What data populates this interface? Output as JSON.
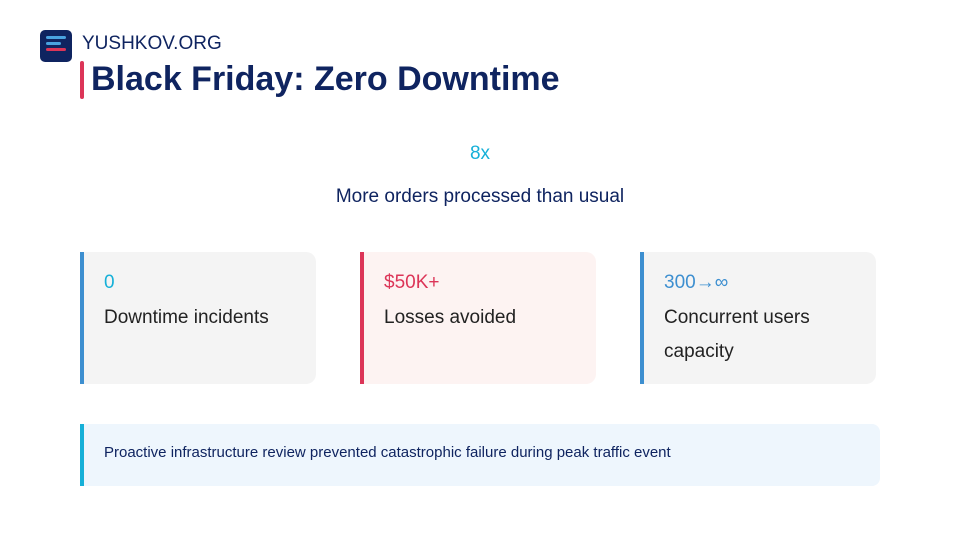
{
  "header": {
    "brand": "YUSHKOV.ORG",
    "title": "Black Friday: Zero Downtime"
  },
  "hero": {
    "value": "8x",
    "label": "More orders processed than usual"
  },
  "cards": [
    {
      "value": "0",
      "label": "Downtime incidents",
      "value_color": "#16b0d8",
      "border": "#3d8fd0",
      "bg": "#f4f4f4"
    },
    {
      "value": "$50K+",
      "label": "Losses avoided",
      "value_color": "#dc3558",
      "border": "#dc3558",
      "bg": "#fdf3f2"
    },
    {
      "value": "300→∞",
      "label": "Concurrent users capacity",
      "value_color": "#3d8fd0",
      "border": "#3d8fd0",
      "bg": "#f4f4f4"
    }
  ],
  "callout": {
    "text": "Proactive infrastructure review prevented catastrophic failure during peak traffic event"
  }
}
